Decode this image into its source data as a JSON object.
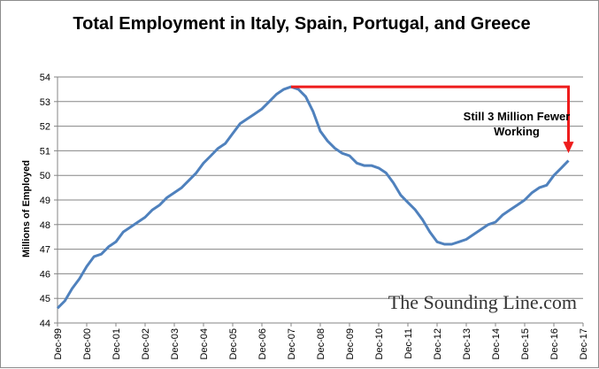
{
  "chart_data": {
    "type": "line",
    "title": "Total Employment in Italy, Spain, Portugal, and Greece",
    "xlabel": "",
    "ylabel": "Millions of Employed",
    "ylim": [
      44,
      54
    ],
    "yticks": [
      "44",
      "45",
      "46",
      "47",
      "48",
      "49",
      "50",
      "51",
      "52",
      "53",
      "54"
    ],
    "xticks": [
      "Dec-99",
      "Dec-00",
      "Dec-01",
      "Dec-02",
      "Dec-03",
      "Dec-04",
      "Dec-05",
      "Dec-06",
      "Dec-07",
      "Dec-08",
      "Dec-09",
      "Dec-10",
      "Dec-11",
      "Dec-12",
      "Dec-13",
      "Dec-14",
      "Dec-15",
      "Dec-16",
      "Dec-17"
    ],
    "grid": "horizontal",
    "legend": "none",
    "series": [
      {
        "color": "#4f81bd",
        "x": [
          1999.75,
          2000.0,
          2000.25,
          2000.5,
          2000.75,
          2001.0,
          2001.25,
          2001.5,
          2001.75,
          2002.0,
          2002.25,
          2002.5,
          2002.75,
          2003.0,
          2003.25,
          2003.5,
          2003.75,
          2004.0,
          2004.25,
          2004.5,
          2004.75,
          2005.0,
          2005.25,
          2005.5,
          2005.75,
          2006.0,
          2006.25,
          2006.5,
          2006.75,
          2007.0,
          2007.25,
          2007.5,
          2007.75,
          2008.0,
          2008.25,
          2008.5,
          2008.75,
          2009.0,
          2009.25,
          2009.5,
          2009.75,
          2010.0,
          2010.25,
          2010.5,
          2010.75,
          2011.0,
          2011.25,
          2011.5,
          2011.75,
          2012.0,
          2012.25,
          2012.5,
          2012.75,
          2013.0,
          2013.25,
          2013.5,
          2013.75,
          2014.0,
          2014.25,
          2014.5,
          2014.75,
          2015.0,
          2015.25,
          2015.5,
          2015.75,
          2016.0,
          2016.25,
          2016.5,
          2016.75,
          2017.0,
          2017.25
        ],
        "values": [
          44.6,
          44.9,
          45.4,
          45.8,
          46.3,
          46.7,
          46.8,
          47.1,
          47.3,
          47.7,
          47.9,
          48.1,
          48.3,
          48.6,
          48.8,
          49.1,
          49.3,
          49.5,
          49.8,
          50.1,
          50.5,
          50.8,
          51.1,
          51.3,
          51.7,
          52.1,
          52.3,
          52.5,
          52.7,
          53.0,
          53.3,
          53.5,
          53.6,
          53.5,
          53.2,
          52.6,
          51.8,
          51.4,
          51.1,
          50.9,
          50.8,
          50.5,
          50.4,
          50.4,
          50.3,
          50.1,
          49.7,
          49.2,
          48.9,
          48.6,
          48.2,
          47.7,
          47.3,
          47.2,
          47.2,
          47.3,
          47.4,
          47.6,
          47.8,
          48.0,
          48.1,
          48.4,
          48.6,
          48.8,
          49.0,
          49.3,
          49.5,
          49.6,
          50.0,
          50.3,
          50.6
        ]
      }
    ],
    "annotation": {
      "lines": [
        "Still 3 Million Fewer",
        "Working"
      ],
      "from": {
        "x": 2007.75,
        "y": 53.6
      },
      "to": {
        "x": 2017.25,
        "y": 50.9
      },
      "color": "#ee1c1c"
    }
  },
  "watermark": "The Sounding Line.com"
}
